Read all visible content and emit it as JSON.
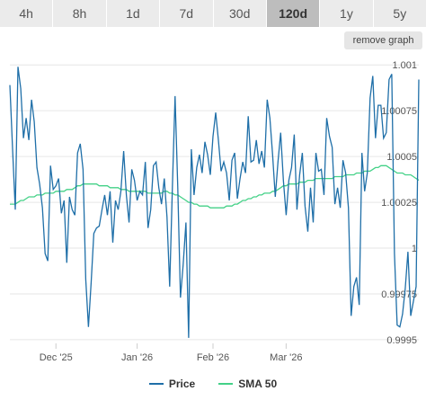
{
  "tabs": [
    {
      "label": "4h",
      "active": false
    },
    {
      "label": "8h",
      "active": false
    },
    {
      "label": "1d",
      "active": false
    },
    {
      "label": "7d",
      "active": false
    },
    {
      "label": "30d",
      "active": false
    },
    {
      "label": "120d",
      "active": true
    },
    {
      "label": "1y",
      "active": false
    },
    {
      "label": "5y",
      "active": false
    }
  ],
  "remove_graph_label": "remove graph",
  "colors": {
    "price": "#1f6fa8",
    "sma": "#43d187",
    "grid": "#e6e6e6"
  },
  "chart_data": {
    "type": "line",
    "title": "",
    "xlabel": "",
    "ylabel": "",
    "ylim": [
      0.99948,
      1.00106
    ],
    "grid": true,
    "legend_position": "bottom",
    "y_ticks": [
      {
        "value": 1.001,
        "label": "1.001"
      },
      {
        "value": 1.00075,
        "label": "1.00075"
      },
      {
        "value": 1.0005,
        "label": "1.0005"
      },
      {
        "value": 1.00025,
        "label": "1.00025"
      },
      {
        "value": 1.0,
        "label": "1"
      },
      {
        "value": 0.99975,
        "label": "0.99975"
      },
      {
        "value": 0.9995,
        "label": "0.9995"
      }
    ],
    "x_ticks": [
      {
        "index": 17,
        "label": "Dec '25"
      },
      {
        "index": 47,
        "label": "Jan '26"
      },
      {
        "index": 75,
        "label": "Feb '26"
      },
      {
        "index": 102,
        "label": "Mar '26"
      }
    ],
    "series": [
      {
        "name": "Price",
        "values": [
          1.00089,
          1.00054,
          1.00021,
          1.00099,
          1.00087,
          1.0006,
          1.00071,
          1.00059,
          1.00081,
          1.00069,
          1.00044,
          1.00035,
          1.00022,
          0.99997,
          0.99993,
          1.00045,
          1.00032,
          1.00034,
          1.00038,
          1.00019,
          1.00026,
          0.99992,
          1.00028,
          1.00021,
          1.00018,
          1.00052,
          1.00057,
          1.00043,
          0.99983,
          0.99957,
          0.99981,
          1.00008,
          1.00011,
          1.00012,
          1.00021,
          1.00029,
          1.00018,
          1.00031,
          1.00003,
          1.00026,
          1.00021,
          1.00031,
          1.00053,
          1.00029,
          1.00014,
          1.00043,
          1.00037,
          1.00026,
          1.00031,
          1.00029,
          1.00047,
          1.00011,
          1.00021,
          1.00045,
          1.00047,
          1.00033,
          1.00024,
          1.00038,
          1.00017,
          0.99979,
          1.00033,
          1.00083,
          1.00033,
          0.99973,
          0.99991,
          1.00014,
          0.99951,
          1.00054,
          1.00029,
          1.00044,
          1.00051,
          1.00041,
          1.00058,
          1.00051,
          1.0004,
          1.00061,
          1.00074,
          1.00059,
          1.00042,
          1.00047,
          1.00041,
          1.00026,
          1.00048,
          1.00052,
          1.00027,
          1.00038,
          1.00047,
          1.00041,
          1.00072,
          1.00047,
          1.00048,
          1.00059,
          1.00046,
          1.00053,
          1.00044,
          1.00081,
          1.00071,
          1.00051,
          1.00028,
          1.00047,
          1.00063,
          1.00037,
          1.00018,
          1.00037,
          1.00044,
          1.00062,
          1.00021,
          1.0004,
          1.00052,
          1.00023,
          1.00009,
          1.00033,
          1.00014,
          1.00052,
          1.00042,
          1.00043,
          1.00029,
          1.00071,
          1.00061,
          1.00055,
          1.00024,
          1.00033,
          1.00022,
          1.00048,
          1.00041,
          1.00022,
          0.99963,
          0.99979,
          0.99984,
          0.99969,
          1.00052,
          1.00031,
          1.00041,
          1.00082,
          1.00094,
          1.0006,
          1.00078,
          1.00078,
          1.0006,
          1.00063,
          1.00092,
          1.00095,
          0.99997,
          0.99958,
          0.99957,
          0.99964,
          0.99978,
          0.99998,
          0.99963,
          0.99971,
          0.99979,
          1.00092
        ]
      },
      {
        "name": "SMA 50",
        "values": [
          1.00024,
          1.00024,
          1.00024,
          1.00025,
          1.00026,
          1.00026,
          1.00027,
          1.00028,
          1.00028,
          1.00028,
          1.00029,
          1.00029,
          1.00029,
          1.0003,
          1.0003,
          1.0003,
          1.0003,
          1.00031,
          1.00031,
          1.00031,
          1.00031,
          1.00032,
          1.00032,
          1.00032,
          1.00033,
          1.00034,
          1.00034,
          1.00035,
          1.00035,
          1.00035,
          1.00035,
          1.00035,
          1.00035,
          1.00034,
          1.00034,
          1.00034,
          1.00034,
          1.00033,
          1.00033,
          1.00033,
          1.00033,
          1.00032,
          1.00032,
          1.00032,
          1.00031,
          1.00031,
          1.00031,
          1.00031,
          1.00031,
          1.00031,
          1.00031,
          1.0003,
          1.0003,
          1.0003,
          1.0003,
          1.0003,
          1.0003,
          1.00031,
          1.00031,
          1.0003,
          1.0003,
          1.00029,
          1.00029,
          1.00028,
          1.00027,
          1.00026,
          1.00025,
          1.00025,
          1.00024,
          1.00024,
          1.00023,
          1.00023,
          1.00023,
          1.00023,
          1.00022,
          1.00022,
          1.00022,
          1.00022,
          1.00022,
          1.00022,
          1.00023,
          1.00023,
          1.00023,
          1.00024,
          1.00024,
          1.00025,
          1.00026,
          1.00026,
          1.00027,
          1.00027,
          1.00028,
          1.00028,
          1.00029,
          1.00029,
          1.0003,
          1.0003,
          1.0003,
          1.00031,
          1.00031,
          1.00032,
          1.00033,
          1.00034,
          1.00034,
          1.00035,
          1.00035,
          1.00035,
          1.00035,
          1.00036,
          1.00036,
          1.00036,
          1.00037,
          1.00037,
          1.00037,
          1.00038,
          1.00038,
          1.00038,
          1.00038,
          1.00038,
          1.00038,
          1.00038,
          1.00039,
          1.00039,
          1.00039,
          1.00039,
          1.0004,
          1.0004,
          1.0004,
          1.0004,
          1.00041,
          1.00041,
          1.00041,
          1.00042,
          1.00042,
          1.00042,
          1.00043,
          1.00044,
          1.00044,
          1.00045,
          1.00045,
          1.00045,
          1.00044,
          1.00043,
          1.00042,
          1.00041,
          1.00041,
          1.00041,
          1.0004,
          1.0004,
          1.0004,
          1.00039,
          1.00038,
          1.00037
        ]
      }
    ]
  }
}
